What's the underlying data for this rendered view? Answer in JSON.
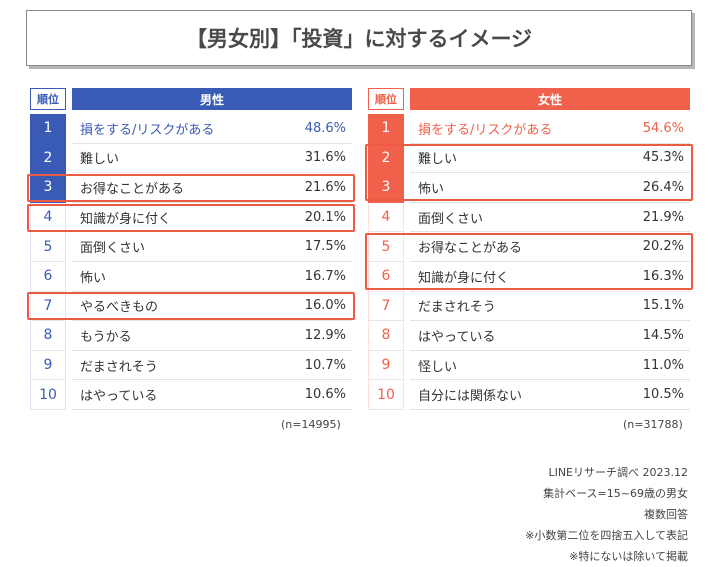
{
  "title": "【男女別】「投資」に対するイメージ",
  "chart_data": {
    "type": "table",
    "rank_header": "順位",
    "tables": [
      {
        "gender": "男性",
        "n": "(n=14995)",
        "rows": [
          {
            "rank": "1",
            "label": "損をする/リスクがある",
            "value": 48.6,
            "display": "48.6%"
          },
          {
            "rank": "2",
            "label": "難しい",
            "value": 31.6,
            "display": "31.6%"
          },
          {
            "rank": "3",
            "label": "お得なことがある",
            "value": 21.6,
            "display": "21.6%"
          },
          {
            "rank": "4",
            "label": "知識が身に付く",
            "value": 20.1,
            "display": "20.1%"
          },
          {
            "rank": "5",
            "label": "面倒くさい",
            "value": 17.5,
            "display": "17.5%"
          },
          {
            "rank": "6",
            "label": "怖い",
            "value": 16.7,
            "display": "16.7%"
          },
          {
            "rank": "7",
            "label": "やるべきもの",
            "value": 16.0,
            "display": "16.0%"
          },
          {
            "rank": "8",
            "label": "もうかる",
            "value": 12.9,
            "display": "12.9%"
          },
          {
            "rank": "9",
            "label": "だまされそう",
            "value": 10.7,
            "display": "10.7%"
          },
          {
            "rank": "10",
            "label": "はやっている",
            "value": 10.6,
            "display": "10.6%"
          }
        ]
      },
      {
        "gender": "女性",
        "n": "(n=31788)",
        "rows": [
          {
            "rank": "1",
            "label": "損をする/リスクがある",
            "value": 54.6,
            "display": "54.6%"
          },
          {
            "rank": "2",
            "label": "難しい",
            "value": 45.3,
            "display": "45.3%"
          },
          {
            "rank": "3",
            "label": "怖い",
            "value": 26.4,
            "display": "26.4%"
          },
          {
            "rank": "4",
            "label": "面倒くさい",
            "value": 21.9,
            "display": "21.9%"
          },
          {
            "rank": "5",
            "label": "お得なことがある",
            "value": 20.2,
            "display": "20.2%"
          },
          {
            "rank": "6",
            "label": "知識が身に付く",
            "value": 16.3,
            "display": "16.3%"
          },
          {
            "rank": "7",
            "label": "だまされそう",
            "value": 15.1,
            "display": "15.1%"
          },
          {
            "rank": "8",
            "label": "はやっている",
            "value": 14.5,
            "display": "14.5%"
          },
          {
            "rank": "9",
            "label": "怪しい",
            "value": 11.0,
            "display": "11.0%"
          },
          {
            "rank": "10",
            "label": "自分には関係ない",
            "value": 10.5,
            "display": "10.5%"
          }
        ]
      }
    ]
  },
  "notes": [
    "LINEリサーチ調べ 2023.12",
    "集計ベース=15~69歳の男女",
    "複数回答",
    "※小数第二位を四捨五入して表記",
    "※特にないは除いて掲載"
  ],
  "colors": {
    "male": "#3a5bb5",
    "female": "#f0604a",
    "highlight": "#ea5a45"
  }
}
